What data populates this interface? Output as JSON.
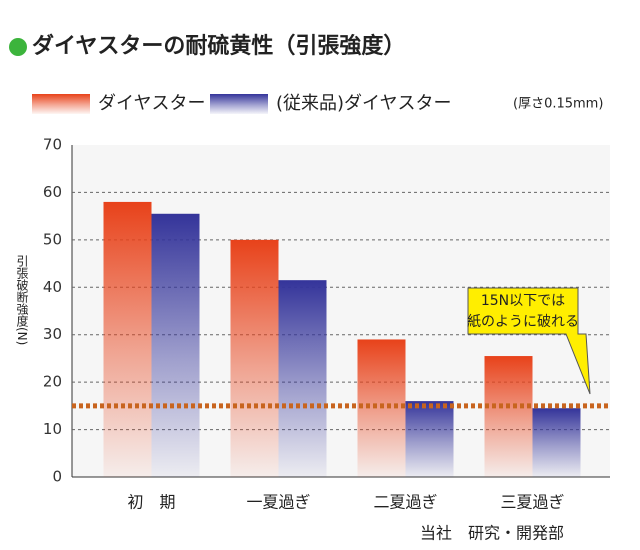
{
  "chart_data": {
    "type": "bar",
    "title": "ダイヤスターの耐硫黄性（引張強度）",
    "subtitle": "(厚さ0.15mm)",
    "y_label": "引張破断強度(N)",
    "categories": [
      "初　期",
      "一夏過ぎ",
      "二夏過ぎ",
      "三夏過ぎ"
    ],
    "series": [
      {
        "name": "ダイヤスター",
        "color": "#e8421a",
        "values": [
          58,
          50,
          29,
          25.5
        ]
      },
      {
        "name": "(従来品)ダイヤスター",
        "color": "#34349a",
        "values": [
          55.5,
          41.5,
          16,
          14.5
        ]
      }
    ],
    "ylim": [
      0,
      70
    ],
    "yticks": [
      0,
      10,
      20,
      30,
      40,
      50,
      60,
      70
    ],
    "grid": true,
    "threshold": 15,
    "threshold_color": "#c8641e",
    "annotation": [
      "15N以下では",
      "紙のように破れる"
    ],
    "source": "当社　研究・開発部"
  }
}
